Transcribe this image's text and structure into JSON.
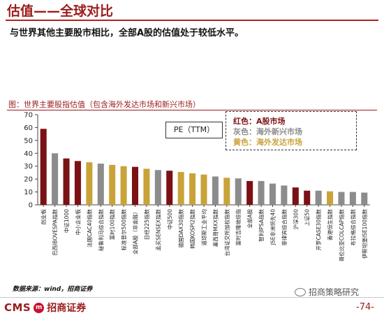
{
  "header": {
    "title": "估值——全球对比",
    "subtitle": "与世界其他主要股市相比，全部A股的估值处于较低水平。"
  },
  "caption": "图：世界主要股指估值（包含海外发达市场和新兴市场）",
  "colors": {
    "red": "#7b1114",
    "gray": "#8c8c8c",
    "gold": "#c9a33a",
    "brand": "#9b1c1c"
  },
  "chart_data": {
    "type": "bar",
    "categories": [
      "创业板",
      "巴西IBOVESPA指数",
      "中证1000",
      "中小企业板",
      "法国CAC40指数",
      "秘鲁利马综合指数",
      "富时100指数",
      "标准普尔500指数",
      "全部A股（非金融）",
      "日经225指数",
      "孟买SENSEX指数",
      "中证500",
      "德国DAX30指数",
      "韩国KOSPI2指数",
      "道琼斯工业平均",
      "墨西哥MXX指数",
      "台湾证交所加权指数",
      "富时吉隆坡综指",
      "全部A股",
      "智利IPSA指数",
      "JSE非洲领先40",
      "菲律宾综合指数",
      "沪深300",
      "上证50",
      "开罗CASE30指数",
      "香港恒生指数",
      "哥伦比亚COLCAP指数",
      "布拉格综合指数",
      "伊斯坦堡ISE100指数"
    ],
    "market_type": [
      "A",
      "EM",
      "A",
      "A",
      "DM",
      "EM",
      "DM",
      "DM",
      "A",
      "DM",
      "EM",
      "A",
      "DM",
      "DM",
      "DM",
      "EM",
      "DM",
      "EM",
      "A",
      "EM",
      "EM",
      "EM",
      "A",
      "A",
      "EM",
      "DM",
      "EM",
      "EM",
      "EM"
    ],
    "series": [
      {
        "values": [
          59,
          40,
          36,
          34,
          33,
          32,
          31,
          30,
          29.5,
          28,
          27,
          26.5,
          25.5,
          24.5,
          23.5,
          22,
          21,
          20.5,
          18.5,
          18.5,
          16.5,
          15,
          13.5,
          11,
          11,
          10.5,
          10,
          10,
          9.5
        ]
      }
    ],
    "yticks": [
      0,
      10,
      20,
      30,
      40,
      50,
      60,
      70
    ],
    "ylim": [
      0,
      70
    ],
    "xlabel": "",
    "ylabel": "",
    "grid": false,
    "annotation": "PE（TTM）",
    "legend": {
      "placement": "top-right",
      "items": [
        {
          "key": "A",
          "label": "红色：A股市场"
        },
        {
          "key": "EM",
          "label": "灰色：海外新兴市场"
        },
        {
          "key": "DM",
          "label": "黄色：海外发达市场"
        }
      ]
    }
  },
  "footer": {
    "source": "数据来源：wind，招商证券",
    "logo_cms": "CMS",
    "logo_badge": "m",
    "logo_cn": "招商证券",
    "watermark": "招商策略研究",
    "page_number": "-74-"
  }
}
